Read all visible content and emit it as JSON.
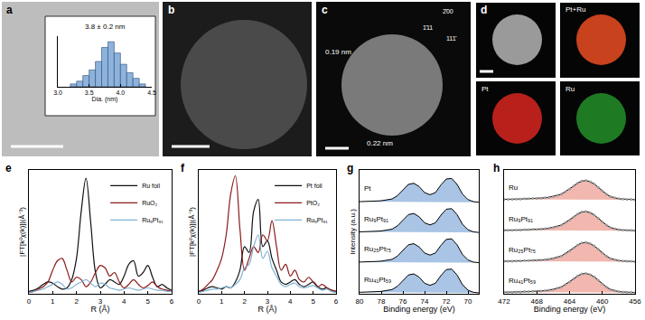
{
  "chart_data": [
    {
      "type": "histogram",
      "title": "3.8 ± 0.2 nm",
      "x_label": "Dia. (nm)",
      "bins": [
        3.2,
        3.3,
        3.4,
        3.5,
        3.6,
        3.7,
        3.8,
        3.9,
        4.0,
        4.1,
        4.2,
        4.3,
        4.4
      ],
      "counts": [
        1,
        2,
        4,
        6,
        9,
        14,
        16,
        12,
        8,
        5,
        3,
        1
      ],
      "color": "#8db3dd",
      "xlim": [
        3.0,
        4.5
      ],
      "xticks": [
        {
          "value": 3,
          "label": "3.0"
        },
        3.5,
        {
          "value": 4,
          "label": "4.0"
        },
        4.5
      ],
      "ylim": [
        0,
        18
      ],
      "tick_labels": "x"
    },
    {
      "panel": "e",
      "type": "line",
      "x_label": "R (Å)",
      "y_label": "|FT[k²χ(k)]|(Å⁻³)",
      "x": [
        0,
        0.2,
        0.4,
        0.6,
        0.8,
        1.0,
        1.2,
        1.4,
        1.6,
        1.8,
        2.0,
        2.2,
        2.4,
        2.6,
        2.8,
        3.0,
        3.2,
        3.4,
        3.6,
        3.8,
        4.0,
        4.2,
        4.4,
        4.6,
        4.8,
        5.0,
        5.2,
        5.4,
        5.6,
        5.8,
        6.0
      ],
      "series": [
        {
          "name": "Ru foil",
          "color": "#111111",
          "values": [
            0.02,
            0.03,
            0.05,
            0.08,
            0.1,
            0.09,
            0.06,
            0.04,
            0.05,
            0.12,
            0.3,
            0.7,
            0.98,
            0.6,
            0.18,
            0.05,
            0.08,
            0.12,
            0.1,
            0.08,
            0.15,
            0.25,
            0.28,
            0.15,
            0.18,
            0.24,
            0.14,
            0.06,
            0.08,
            0.05,
            0.03
          ]
        },
        {
          "name": "RuO₂",
          "color": "#8b1a1a",
          "values": [
            0.01,
            0.02,
            0.04,
            0.06,
            0.1,
            0.2,
            0.28,
            0.3,
            0.2,
            0.1,
            0.14,
            0.12,
            0.06,
            0.1,
            0.18,
            0.24,
            0.22,
            0.15,
            0.18,
            0.1,
            0.05,
            0.08,
            0.12,
            0.08,
            0.05,
            0.07,
            0.1,
            0.06,
            0.04,
            0.03,
            0.02
          ]
        },
        {
          "name": "Ru₉Pt₉₁",
          "color": "#7fb2d5",
          "values": [
            0.01,
            0.02,
            0.03,
            0.04,
            0.06,
            0.08,
            0.1,
            0.08,
            0.04,
            0.05,
            0.08,
            0.1,
            0.12,
            0.09,
            0.06,
            0.09,
            0.08,
            0.05,
            0.04,
            0.03,
            0.04,
            0.05,
            0.04,
            0.03,
            0.04,
            0.05,
            0.04,
            0.03,
            0.03,
            0.02,
            0.02
          ]
        }
      ],
      "xlim": [
        0,
        6
      ],
      "xticks": [
        0,
        1,
        2,
        3,
        4,
        5,
        6
      ],
      "ylim": [
        0,
        1.05
      ],
      "tick_labels": "x",
      "legend": "upper right"
    },
    {
      "panel": "f",
      "type": "line",
      "x_label": "R (Å)",
      "y_label": "|FT[k²χ(k)]|(Å⁻³)",
      "x": [
        0,
        0.2,
        0.4,
        0.6,
        0.8,
        1.0,
        1.2,
        1.4,
        1.6,
        1.8,
        2.0,
        2.2,
        2.4,
        2.6,
        2.8,
        3.0,
        3.2,
        3.4,
        3.6,
        3.8,
        4.0,
        4.2,
        4.4,
        4.6,
        4.8,
        5.0,
        5.2,
        5.4,
        5.6,
        5.8,
        6.0
      ],
      "series": [
        {
          "name": "Pt foil",
          "color": "#111111",
          "values": [
            0.02,
            0.03,
            0.05,
            0.06,
            0.05,
            0.04,
            0.06,
            0.05,
            0.1,
            0.2,
            0.4,
            0.35,
            0.7,
            0.8,
            0.4,
            0.45,
            0.3,
            0.2,
            0.1,
            0.08,
            0.1,
            0.12,
            0.08,
            0.06,
            0.08,
            0.1,
            0.06,
            0.04,
            0.05,
            0.03,
            0.02
          ]
        },
        {
          "name": "PtO₂",
          "color": "#8b1a1a",
          "values": [
            0.02,
            0.04,
            0.08,
            0.12,
            0.2,
            0.3,
            0.5,
            0.85,
            1.0,
            0.55,
            0.2,
            0.3,
            0.4,
            0.35,
            0.5,
            0.45,
            0.62,
            0.4,
            0.2,
            0.25,
            0.15,
            0.2,
            0.12,
            0.1,
            0.14,
            0.1,
            0.06,
            0.08,
            0.05,
            0.03,
            0.02
          ]
        },
        {
          "name": "Ru₉Pt₉₁",
          "color": "#7fb2d5",
          "values": [
            0.01,
            0.02,
            0.03,
            0.04,
            0.04,
            0.05,
            0.06,
            0.05,
            0.08,
            0.12,
            0.22,
            0.25,
            0.4,
            0.5,
            0.3,
            0.36,
            0.22,
            0.15,
            0.08,
            0.06,
            0.08,
            0.09,
            0.06,
            0.05,
            0.06,
            0.07,
            0.05,
            0.03,
            0.04,
            0.02,
            0.01
          ]
        }
      ],
      "xlim": [
        0,
        6
      ],
      "xticks": [
        0,
        1,
        2,
        3,
        4,
        5,
        6
      ],
      "ylim": [
        0,
        1.05
      ],
      "tick_labels": "x",
      "legend": "upper right"
    },
    {
      "panel": "g",
      "type": "area",
      "x_label": "Binding energy (eV)",
      "y_label": "Intensity (a.u.)",
      "x": [
        80,
        79.5,
        79,
        78.5,
        78,
        77.5,
        77,
        76.5,
        76,
        75.5,
        75,
        74.5,
        74,
        73.5,
        73,
        72.5,
        72,
        71.5,
        71,
        70.5,
        70,
        69.5,
        69
      ],
      "series": [
        {
          "name": "Pt",
          "color": "#a9c4e4",
          "values": [
            3.05,
            3.05,
            3.06,
            3.07,
            3.08,
            3.1,
            3.14,
            3.25,
            3.45,
            3.62,
            3.66,
            3.55,
            3.35,
            3.28,
            3.35,
            3.6,
            3.8,
            3.82,
            3.62,
            3.3,
            3.12,
            3.05,
            3.03
          ]
        },
        {
          "name": "Ru₉Pt₉₁",
          "color": "#a9c4e4",
          "values": [
            2.05,
            2.05,
            2.06,
            2.07,
            2.08,
            2.1,
            2.14,
            2.25,
            2.45,
            2.62,
            2.66,
            2.55,
            2.35,
            2.28,
            2.35,
            2.6,
            2.8,
            2.82,
            2.62,
            2.3,
            2.12,
            2.05,
            2.03
          ]
        },
        {
          "name": "Ru₂₅Pt₇₅",
          "color": "#a9c4e4",
          "values": [
            1.05,
            1.05,
            1.06,
            1.07,
            1.08,
            1.1,
            1.14,
            1.25,
            1.45,
            1.62,
            1.66,
            1.55,
            1.35,
            1.28,
            1.35,
            1.6,
            1.8,
            1.82,
            1.62,
            1.3,
            1.12,
            1.05,
            1.03
          ]
        },
        {
          "name": "Ru₄₁Pt₅₉",
          "color": "#a9c4e4",
          "values": [
            0.05,
            0.05,
            0.06,
            0.07,
            0.08,
            0.1,
            0.14,
            0.25,
            0.45,
            0.62,
            0.66,
            0.55,
            0.35,
            0.28,
            0.35,
            0.6,
            0.8,
            0.82,
            0.62,
            0.3,
            0.12,
            0.05,
            0.03
          ]
        }
      ],
      "xlim": [
        80,
        69
      ],
      "xticks": [
        80,
        78,
        76,
        74,
        72,
        70
      ],
      "ylim": [
        0,
        4.1
      ],
      "tick_labels": "x"
    },
    {
      "panel": "h",
      "type": "area",
      "x_label": "Binding energy (eV)",
      "x": [
        472,
        471.5,
        471,
        470.5,
        470,
        469.5,
        469,
        468.5,
        468,
        467.5,
        467,
        466.5,
        466,
        465.5,
        465,
        464.5,
        464,
        463.5,
        463,
        462.5,
        462,
        461.5,
        461,
        460.5,
        460,
        459.5,
        459,
        458.5,
        458,
        457.5,
        457,
        456.5,
        456
      ],
      "series": [
        {
          "name": "Ru",
          "color": "#f2b8b0",
          "marker": "circle",
          "values": [
            3.05,
            3.05,
            3.05,
            3.06,
            3.06,
            3.07,
            3.07,
            3.08,
            3.08,
            3.09,
            3.1,
            3.12,
            3.14,
            3.18,
            3.22,
            3.3,
            3.38,
            3.48,
            3.58,
            3.64,
            3.66,
            3.62,
            3.55,
            3.44,
            3.32,
            3.22,
            3.14,
            3.1,
            3.07,
            3.06,
            3.05,
            3.05,
            3.04
          ]
        },
        {
          "name": "Ru₉Pt₉₁",
          "color": "#f2b8b0",
          "marker": "circle",
          "values": [
            2.05,
            2.05,
            2.05,
            2.06,
            2.06,
            2.07,
            2.07,
            2.08,
            2.08,
            2.09,
            2.1,
            2.12,
            2.14,
            2.18,
            2.22,
            2.3,
            2.38,
            2.48,
            2.58,
            2.64,
            2.66,
            2.62,
            2.55,
            2.44,
            2.32,
            2.22,
            2.14,
            2.1,
            2.07,
            2.06,
            2.05,
            2.05,
            2.04
          ]
        },
        {
          "name": "Ru₂₅Pt₇₅",
          "color": "#f2b8b0",
          "marker": "circle",
          "values": [
            1.05,
            1.05,
            1.05,
            1.06,
            1.06,
            1.07,
            1.07,
            1.08,
            1.08,
            1.09,
            1.1,
            1.12,
            1.14,
            1.18,
            1.22,
            1.3,
            1.38,
            1.48,
            1.58,
            1.64,
            1.66,
            1.62,
            1.55,
            1.44,
            1.32,
            1.22,
            1.14,
            1.1,
            1.07,
            1.06,
            1.05,
            1.05,
            1.04
          ]
        },
        {
          "name": "Ru₄₁Pt₅₉",
          "color": "#f2b8b0",
          "marker": "circle",
          "values": [
            0.05,
            0.05,
            0.05,
            0.06,
            0.06,
            0.07,
            0.07,
            0.08,
            0.08,
            0.09,
            0.1,
            0.12,
            0.14,
            0.18,
            0.22,
            0.3,
            0.38,
            0.48,
            0.58,
            0.64,
            0.66,
            0.62,
            0.55,
            0.44,
            0.32,
            0.22,
            0.14,
            0.1,
            0.07,
            0.06,
            0.05,
            0.05,
            0.04
          ]
        }
      ],
      "xlim": [
        472,
        456
      ],
      "xticks": [
        472,
        468,
        464,
        460,
        456
      ],
      "ylim": [
        0,
        4.0
      ],
      "tick_labels": "x"
    }
  ],
  "micrographs": [
    {
      "label": "a"
    },
    {
      "label": "b"
    },
    {
      "label": "c",
      "annotations": [
        "0.19 nm",
        "0.22 nm"
      ],
      "fft_spots": [
        "2̄00",
        "1̄11",
        "111̄"
      ]
    },
    {
      "label": "d",
      "maps": [
        {
          "label": "Pt+Ru",
          "color": "#c8421e"
        },
        {
          "label": "Pt",
          "color": "#b8201c"
        },
        {
          "label": "Ru",
          "color": "#1f7a24"
        }
      ]
    }
  ]
}
